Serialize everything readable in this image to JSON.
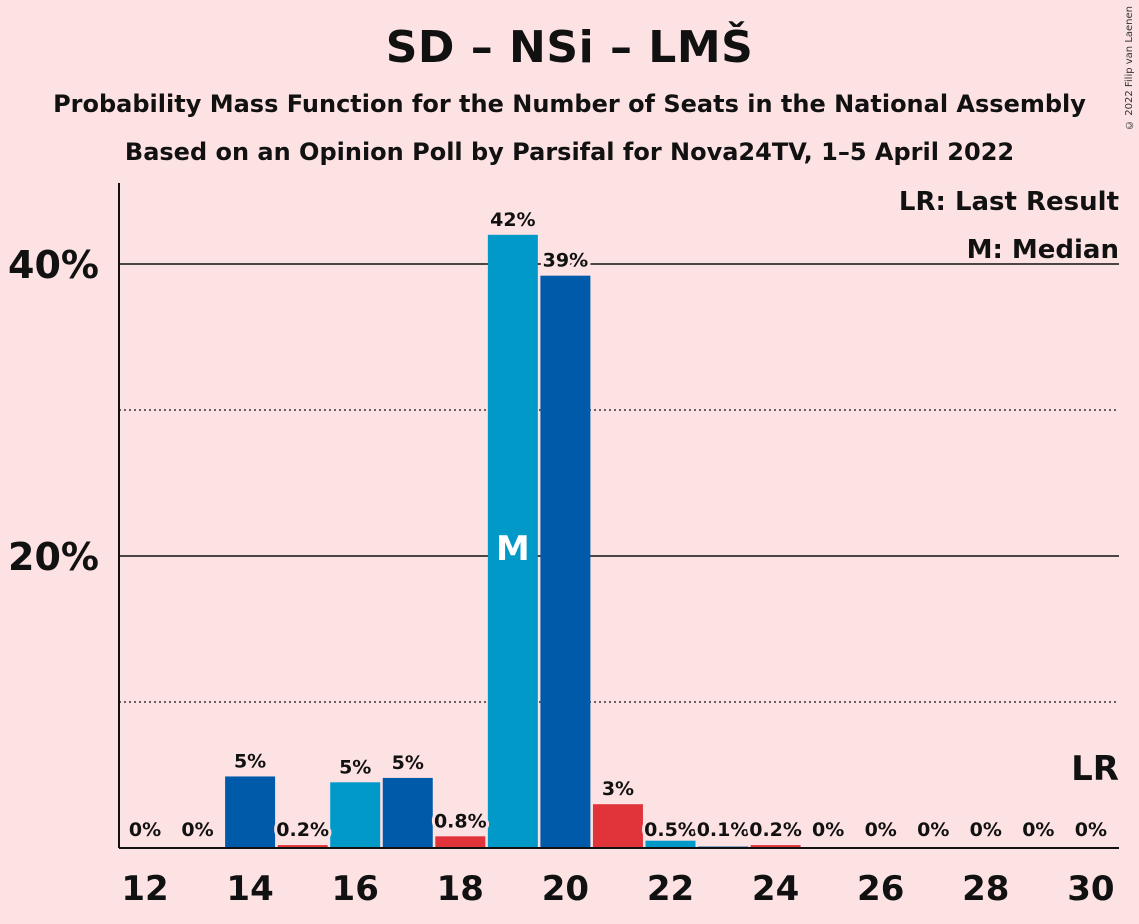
{
  "title": "SD – NSi – LMŠ",
  "subtitle1": "Probability Mass Function for the Number of Seats in the National Assembly",
  "subtitle2": "Based on an Opinion Poll by Parsifal for Nova24TV, 1–5 April 2022",
  "copyright": "© 2022 Filip van Laenen",
  "colors": {
    "background": "#fde2e4",
    "light_blue": "#0099c8",
    "dark_blue": "#005aaa",
    "red": "#e0333a"
  },
  "chart_data": {
    "type": "bar",
    "x": [
      12,
      13,
      14,
      15,
      16,
      17,
      18,
      19,
      20,
      21,
      22,
      23,
      24,
      25,
      26,
      27,
      28,
      29,
      30
    ],
    "values": [
      0,
      0,
      4.9,
      0.2,
      4.5,
      4.8,
      0.8,
      42,
      39.2,
      3,
      0.5,
      0.1,
      0.2,
      0,
      0,
      0,
      0,
      0,
      0
    ],
    "labels": [
      "0%",
      "0%",
      "5%",
      "0.2%",
      "5%",
      "5%",
      "0.8%",
      "42%",
      "39%",
      "3%",
      "0.5%",
      "0.1%",
      "0.2%",
      "0%",
      "0%",
      "0%",
      "0%",
      "0%",
      "0%"
    ],
    "bar_colors": [
      "light_blue",
      "light_blue",
      "dark_blue",
      "red",
      "light_blue",
      "dark_blue",
      "red",
      "light_blue",
      "dark_blue",
      "red",
      "light_blue",
      "dark_blue",
      "red",
      "light_blue",
      "dark_blue",
      "red",
      "light_blue",
      "dark_blue",
      "red"
    ],
    "x_tick_labels": [
      "12",
      "14",
      "16",
      "18",
      "20",
      "22",
      "24",
      "26",
      "28",
      "30"
    ],
    "x_tick_values": [
      12,
      14,
      16,
      18,
      20,
      22,
      24,
      26,
      28,
      30
    ],
    "y_tick_labels": [
      "20%",
      "40%"
    ],
    "y_tick_values": [
      20,
      40
    ],
    "y_minor_gridlines": [
      10,
      30
    ],
    "ylim": [
      0,
      45
    ],
    "median_seat": 19,
    "median_marker": "M",
    "last_result_seat": 30,
    "last_result_marker": "LR",
    "legend": {
      "placement": "top-right",
      "lr": "LR: Last Result",
      "m": "M: Median"
    }
  }
}
